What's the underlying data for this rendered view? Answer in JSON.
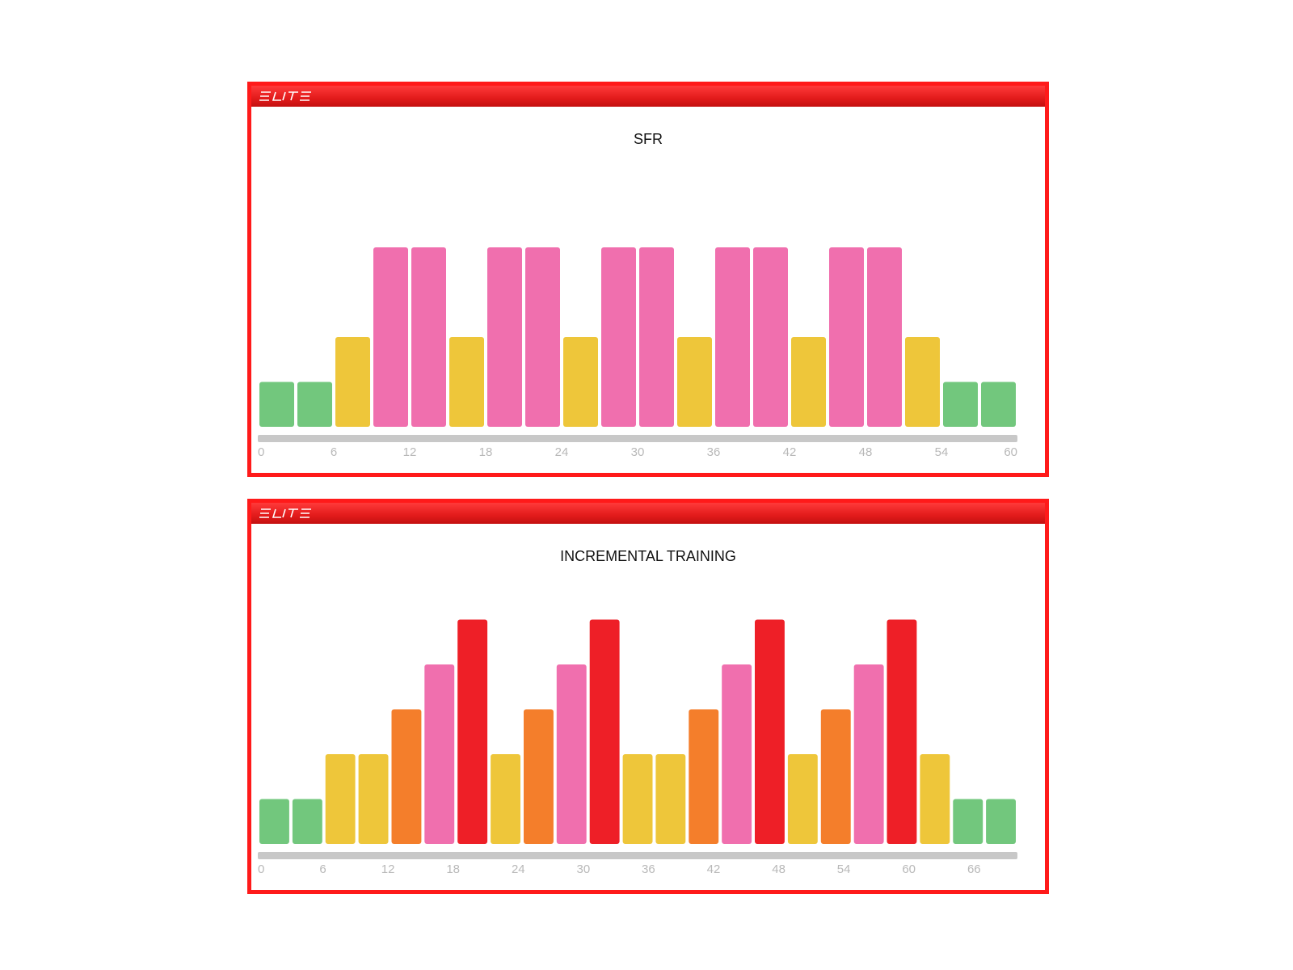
{
  "brand": {
    "logo_text": "ELITE",
    "logo_icon": "elite-logo-icon",
    "accent": "#ff1a1a"
  },
  "zone_colors": {
    "green": "#72c77d",
    "yellow": "#eec63a",
    "orange": "#f47e2b",
    "pink": "#f06fae",
    "red": "#ee1f27",
    "track": "#c8c8c8"
  },
  "chart_data": [
    {
      "type": "bar",
      "title": "SFR",
      "xlabel": "",
      "ylabel": "",
      "xlim": [
        0,
        60
      ],
      "ylim": [
        0,
        5
      ],
      "x_ticks": [
        "0",
        "6",
        "12",
        "18",
        "24",
        "30",
        "36",
        "42",
        "48",
        "54",
        "60"
      ],
      "bars": [
        {
          "zone": "green",
          "value": 1
        },
        {
          "zone": "green",
          "value": 1
        },
        {
          "zone": "yellow",
          "value": 2
        },
        {
          "zone": "pink",
          "value": 4
        },
        {
          "zone": "pink",
          "value": 4
        },
        {
          "zone": "yellow",
          "value": 2
        },
        {
          "zone": "pink",
          "value": 4
        },
        {
          "zone": "pink",
          "value": 4
        },
        {
          "zone": "yellow",
          "value": 2
        },
        {
          "zone": "pink",
          "value": 4
        },
        {
          "zone": "pink",
          "value": 4
        },
        {
          "zone": "yellow",
          "value": 2
        },
        {
          "zone": "pink",
          "value": 4
        },
        {
          "zone": "pink",
          "value": 4
        },
        {
          "zone": "yellow",
          "value": 2
        },
        {
          "zone": "pink",
          "value": 4
        },
        {
          "zone": "pink",
          "value": 4
        },
        {
          "zone": "yellow",
          "value": 2
        },
        {
          "zone": "green",
          "value": 1
        },
        {
          "zone": "green",
          "value": 1
        }
      ]
    },
    {
      "type": "bar",
      "title": "INCREMENTAL TRAINING",
      "xlabel": "",
      "ylabel": "",
      "xlim": [
        0,
        70
      ],
      "ylim": [
        0,
        5
      ],
      "x_ticks": [
        "0",
        "6",
        "12",
        "18",
        "24",
        "30",
        "36",
        "42",
        "48",
        "54",
        "60",
        "66"
      ],
      "bars": [
        {
          "zone": "green",
          "value": 1
        },
        {
          "zone": "green",
          "value": 1
        },
        {
          "zone": "yellow",
          "value": 2
        },
        {
          "zone": "yellow",
          "value": 2
        },
        {
          "zone": "orange",
          "value": 3
        },
        {
          "zone": "pink",
          "value": 4
        },
        {
          "zone": "red",
          "value": 5
        },
        {
          "zone": "yellow",
          "value": 2
        },
        {
          "zone": "orange",
          "value": 3
        },
        {
          "zone": "pink",
          "value": 4
        },
        {
          "zone": "red",
          "value": 5
        },
        {
          "zone": "yellow",
          "value": 2
        },
        {
          "zone": "yellow",
          "value": 2
        },
        {
          "zone": "orange",
          "value": 3
        },
        {
          "zone": "pink",
          "value": 4
        },
        {
          "zone": "red",
          "value": 5
        },
        {
          "zone": "yellow",
          "value": 2
        },
        {
          "zone": "orange",
          "value": 3
        },
        {
          "zone": "pink",
          "value": 4
        },
        {
          "zone": "red",
          "value": 5
        },
        {
          "zone": "yellow",
          "value": 2
        },
        {
          "zone": "green",
          "value": 1
        },
        {
          "zone": "green",
          "value": 1
        }
      ]
    }
  ]
}
